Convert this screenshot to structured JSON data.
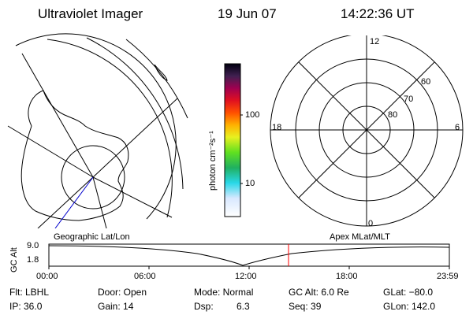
{
  "header": {
    "title": "Ultraviolet Imager",
    "date": "19 Jun 07",
    "time": "14:22:36 UT"
  },
  "left_panel": {
    "caption": "Geographic Lat/Lon"
  },
  "right_panel": {
    "caption": "Apex MLat/MLT",
    "mlt_labels": {
      "top": "12",
      "bottom": "0",
      "left": "18",
      "right": "6"
    },
    "lat_labels": [
      "60",
      "70",
      "80"
    ]
  },
  "colorbar": {
    "unit_label": "photon cm⁻²s⁻¹",
    "tick_labels": [
      "100",
      "10"
    ]
  },
  "altitude_plot": {
    "axis_label": "GC Alt",
    "y_ticks": [
      "9.0",
      "1.8"
    ],
    "x_ticks": [
      "00:00",
      "06:00",
      "12:00",
      "18:00",
      "23:59"
    ]
  },
  "footer": {
    "row1": [
      "Flt: LBHL",
      "Door: Open",
      "Mode: Normal",
      "GC Alt: 6.0 Re",
      "GLat: −80.0"
    ],
    "row2": [
      "IP: 36.0",
      "Gain: 14",
      "Dsp:",
      "6.3",
      "Seq: 39",
      "GLon: 142.0"
    ]
  },
  "colors": {
    "marker": "#ff0000",
    "track": "#0000cc",
    "foreground": "#000000"
  }
}
